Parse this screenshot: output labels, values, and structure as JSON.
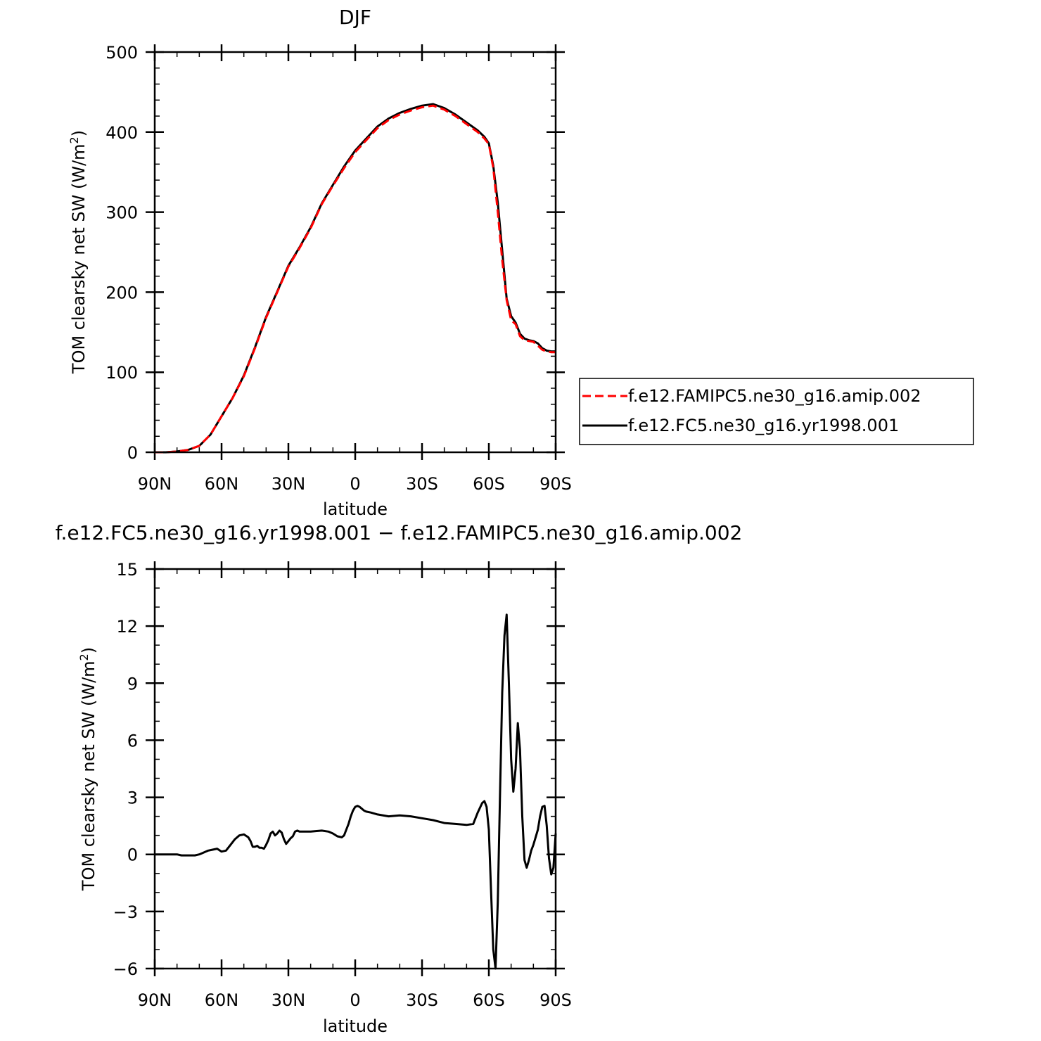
{
  "chart_data": [
    {
      "type": "line",
      "title": "DJF",
      "xlabel": "latitude",
      "ylabel": "TOM clearsky net SW (W/m",
      "ylabel_sup": "2",
      "ylabel_tail": ")",
      "xlim": [
        90,
        -90
      ],
      "ylim": [
        0,
        500
      ],
      "xticks": [
        {
          "value": 90,
          "label": "90N"
        },
        {
          "value": 60,
          "label": "60N"
        },
        {
          "value": 30,
          "label": "30N"
        },
        {
          "value": 0,
          "label": "0"
        },
        {
          "value": -30,
          "label": "30S"
        },
        {
          "value": -60,
          "label": "60S"
        },
        {
          "value": -90,
          "label": "90S"
        }
      ],
      "yticks": [
        {
          "value": 0,
          "label": "0"
        },
        {
          "value": 100,
          "label": "100"
        },
        {
          "value": 200,
          "label": "200"
        },
        {
          "value": 300,
          "label": "300"
        },
        {
          "value": 400,
          "label": "400"
        },
        {
          "value": 500,
          "label": "500"
        }
      ],
      "legend_position": "right",
      "series": [
        {
          "name": "f.e12.FAMIPC5.ne30_g16.amip.002",
          "color": "#ff0000",
          "dash": "dashed",
          "x": [
            90,
            85,
            80,
            75,
            70,
            65,
            60,
            55,
            50,
            45,
            40,
            35,
            30,
            25,
            20,
            15,
            10,
            5,
            0,
            -5,
            -10,
            -15,
            -20,
            -25,
            -30,
            -35,
            -40,
            -45,
            -50,
            -55,
            -58,
            -60,
            -62,
            -64,
            -66,
            -68,
            -70,
            -72,
            -74,
            -76,
            -78,
            -80,
            -82,
            -84,
            -86,
            -88,
            -90
          ],
          "y": [
            0,
            0,
            1,
            3,
            8,
            22,
            45,
            68,
            95,
            130,
            168,
            200,
            232,
            255,
            280,
            310,
            333,
            355,
            375,
            390,
            405,
            415,
            422,
            427,
            431,
            433,
            428,
            420,
            410,
            400,
            392,
            385,
            355,
            300,
            240,
            190,
            165,
            160,
            145,
            140,
            139,
            138,
            133,
            128,
            126,
            125,
            125
          ]
        },
        {
          "name": "f.e12.FC5.ne30_g16.yr1998.001",
          "color": "#000000",
          "dash": "solid",
          "x": [
            90,
            85,
            80,
            75,
            70,
            65,
            60,
            55,
            50,
            45,
            40,
            35,
            30,
            25,
            20,
            15,
            10,
            5,
            0,
            -5,
            -10,
            -15,
            -20,
            -25,
            -30,
            -35,
            -40,
            -45,
            -50,
            -55,
            -58,
            -60,
            -62,
            -64,
            -66,
            -68,
            -70,
            -72,
            -74,
            -76,
            -78,
            -80,
            -82,
            -84,
            -86,
            -88,
            -90
          ],
          "y": [
            0,
            0,
            1,
            3,
            8,
            22,
            45,
            68,
            96,
            131,
            169,
            201,
            233,
            256,
            281,
            311,
            334,
            357,
            377,
            392,
            407,
            417,
            424,
            429,
            433,
            435,
            430,
            422,
            412,
            402,
            394,
            386,
            358,
            312,
            252,
            192,
            170,
            162,
            148,
            142,
            140,
            139,
            136,
            130,
            127,
            126,
            126
          ]
        }
      ]
    },
    {
      "type": "line",
      "title": "f.e12.FC5.ne30_g16.yr1998.001 − f.e12.FAMIPC5.ne30_g16.amip.002",
      "xlabel": "latitude",
      "ylabel": "TOM clearsky net SW (W/m",
      "ylabel_sup": "2",
      "ylabel_tail": ")",
      "xlim": [
        90,
        -90
      ],
      "ylim": [
        -6,
        15
      ],
      "xticks": [
        {
          "value": 90,
          "label": "90N"
        },
        {
          "value": 60,
          "label": "60N"
        },
        {
          "value": 30,
          "label": "30N"
        },
        {
          "value": 0,
          "label": "0"
        },
        {
          "value": -30,
          "label": "30S"
        },
        {
          "value": -60,
          "label": "60S"
        },
        {
          "value": -90,
          "label": "90S"
        }
      ],
      "yticks": [
        {
          "value": -6,
          "label": "−6"
        },
        {
          "value": -3,
          "label": "−3"
        },
        {
          "value": 0,
          "label": "0"
        },
        {
          "value": 3,
          "label": "3"
        },
        {
          "value": 6,
          "label": "6"
        },
        {
          "value": 9,
          "label": "9"
        },
        {
          "value": 12,
          "label": "12"
        },
        {
          "value": 15,
          "label": "15"
        }
      ],
      "series": [
        {
          "color": "#000000",
          "dash": "solid",
          "x": [
            90,
            85,
            80,
            78,
            75,
            72,
            70,
            68,
            66,
            64,
            62,
            60,
            58,
            56,
            54,
            52,
            50,
            48,
            47,
            46,
            45,
            44,
            43,
            42,
            41,
            40,
            39,
            38,
            37,
            36,
            35,
            34,
            33,
            32,
            31,
            30,
            29,
            28,
            27,
            26,
            25,
            20,
            15,
            12,
            10,
            8,
            6,
            5,
            4,
            3,
            2,
            1,
            0,
            -1,
            -2,
            -3,
            -4,
            -5,
            -7,
            -10,
            -15,
            -20,
            -25,
            -30,
            -35,
            -40,
            -45,
            -50,
            -53,
            -55,
            -57,
            -58,
            -59,
            -60,
            -61,
            -62,
            -63,
            -64,
            -65,
            -66,
            -67,
            -68,
            -69,
            -70,
            -71,
            -72,
            -73,
            -74,
            -75,
            -76,
            -77,
            -78,
            -79,
            -80,
            -81,
            -82,
            -83,
            -84,
            -85,
            -86,
            -87,
            -88,
            -89,
            -90
          ],
          "y": [
            0,
            0,
            0,
            -0.05,
            -0.05,
            -0.05,
            0,
            0.1,
            0.2,
            0.25,
            0.3,
            0.15,
            0.2,
            0.5,
            0.8,
            1.0,
            1.05,
            0.9,
            0.7,
            0.4,
            0.4,
            0.45,
            0.35,
            0.35,
            0.3,
            0.5,
            0.75,
            1.1,
            1.2,
            1.0,
            1.1,
            1.25,
            1.15,
            0.8,
            0.55,
            0.7,
            0.85,
            0.95,
            1.2,
            1.25,
            1.2,
            1.2,
            1.25,
            1.2,
            1.1,
            0.95,
            0.9,
            1.0,
            1.3,
            1.6,
            2.0,
            2.3,
            2.5,
            2.55,
            2.5,
            2.4,
            2.3,
            2.25,
            2.2,
            2.1,
            2.0,
            2.05,
            2.0,
            1.9,
            1.8,
            1.65,
            1.6,
            1.55,
            1.6,
            2.2,
            2.7,
            2.8,
            2.5,
            1.3,
            -2.0,
            -5.0,
            -6.0,
            -2.5,
            3.0,
            8.5,
            11.5,
            12.6,
            9.0,
            5.0,
            3.3,
            4.5,
            6.9,
            5.5,
            2.0,
            -0.3,
            -0.7,
            -0.3,
            0.2,
            0.5,
            0.9,
            1.3,
            2.0,
            2.5,
            2.55,
            1.5,
            -0.2,
            -1.05,
            -0.7,
            1.1
          ]
        }
      ]
    }
  ]
}
